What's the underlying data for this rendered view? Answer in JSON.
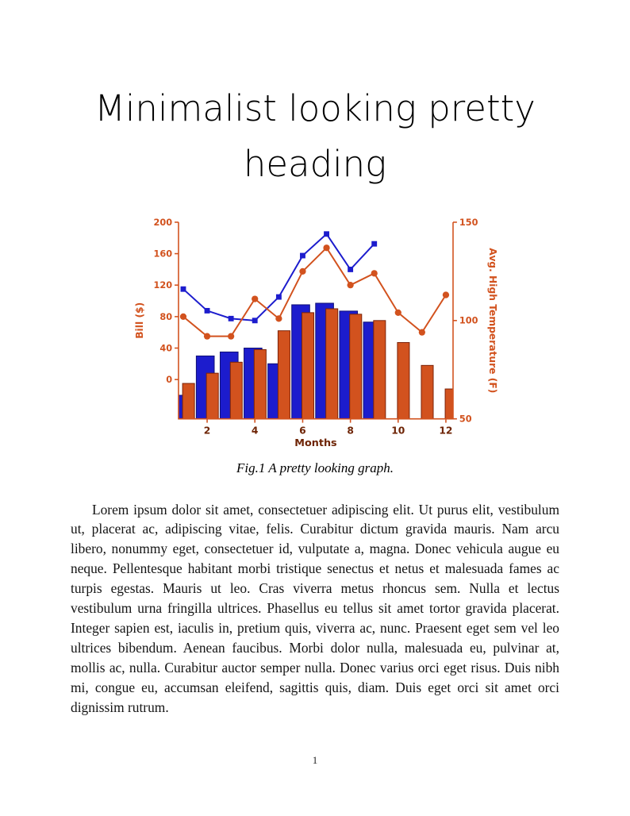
{
  "page": {
    "number": "1"
  },
  "heading": {
    "title": "Minimalist looking pretty heading",
    "line1": "Minimalist looking pretty",
    "line2": "heading"
  },
  "figure": {
    "caption": "Fig.1 A pretty looking graph."
  },
  "body": {
    "paragraph": "Lorem ipsum dolor sit amet, consectetuer adipiscing elit. Ut purus elit, vestibulum ut, placerat ac, adipiscing vitae, felis. Curabitur dictum gravida mauris. Nam arcu libero, nonummy eget, consectetuer id, vulputate a, magna. Donec vehicula augue eu neque. Pellentesque habitant morbi tristique senectus et netus et malesuada fames ac turpis egestas. Mauris ut leo. Cras viverra metus rhoncus sem. Nulla et lectus vestibulum urna fringilla ultrices. Phasellus eu tellus sit amet tortor gravida placerat. Integer sapien est, iaculis in, pretium quis, viverra ac, nunc. Praesent eget sem vel leo ultrices bibendum. Aenean faucibus. Morbi dolor nulla, malesuada eu, pulvinar at, mollis ac, nulla. Curabitur auctor semper nulla. Donec varius orci eget risus. Duis nibh mi, congue eu, accumsan eleifend, sagittis quis, diam. Duis eget orci sit amet orci dignissim rutrum."
  },
  "chart_data": {
    "type": "combo",
    "title": "",
    "xlabel": "Months",
    "ylabel_left": "Bill ($)",
    "ylabel_right": "Avg. High Temperature (F)",
    "x": [
      1,
      2,
      3,
      4,
      5,
      6,
      7,
      8,
      9,
      10,
      11,
      12
    ],
    "xlim": [
      0.8,
      12.3
    ],
    "xticks": [
      2,
      4,
      6,
      8,
      10,
      12
    ],
    "left_ylim": [
      -50,
      200
    ],
    "left_yticks": [
      0,
      40,
      80,
      120,
      160,
      200
    ],
    "right_ylim": [
      50,
      150
    ],
    "right_yticks": [
      50,
      100,
      150
    ],
    "grid": false,
    "legend": false,
    "bar_baseline": "plot-bottom",
    "bar_series": [
      {
        "name": "bill-bars-blue",
        "axis": "left",
        "color": "#1c1ccd",
        "edge": "#101074",
        "width": 0.75,
        "offset": -0.08,
        "values": [
          -20,
          30,
          35,
          40,
          20,
          95,
          97,
          87,
          73,
          null,
          null,
          null
        ]
      },
      {
        "name": "bill-bars-orange",
        "axis": "left",
        "color": "#d2521e",
        "edge": "#7a2208",
        "width": 0.5,
        "offset": 0.22,
        "values": [
          -5,
          8,
          22,
          38,
          62,
          85,
          90,
          83,
          75,
          47,
          18,
          -12
        ]
      }
    ],
    "line_series": [
      {
        "name": "temp-line-blue",
        "axis": "right",
        "color": "#1c1ccd",
        "marker": "square",
        "values": [
          116,
          105,
          101,
          100,
          112,
          133,
          144,
          126,
          139,
          null,
          null,
          null
        ]
      },
      {
        "name": "temp-line-orange",
        "axis": "right",
        "color": "#d2521e",
        "marker": "circle",
        "values": [
          102,
          92,
          92,
          111,
          101,
          125,
          137,
          118,
          124,
          104,
          94,
          113
        ]
      }
    ],
    "axis_color": "#d2521e",
    "xtick_color": "#6e2405"
  }
}
